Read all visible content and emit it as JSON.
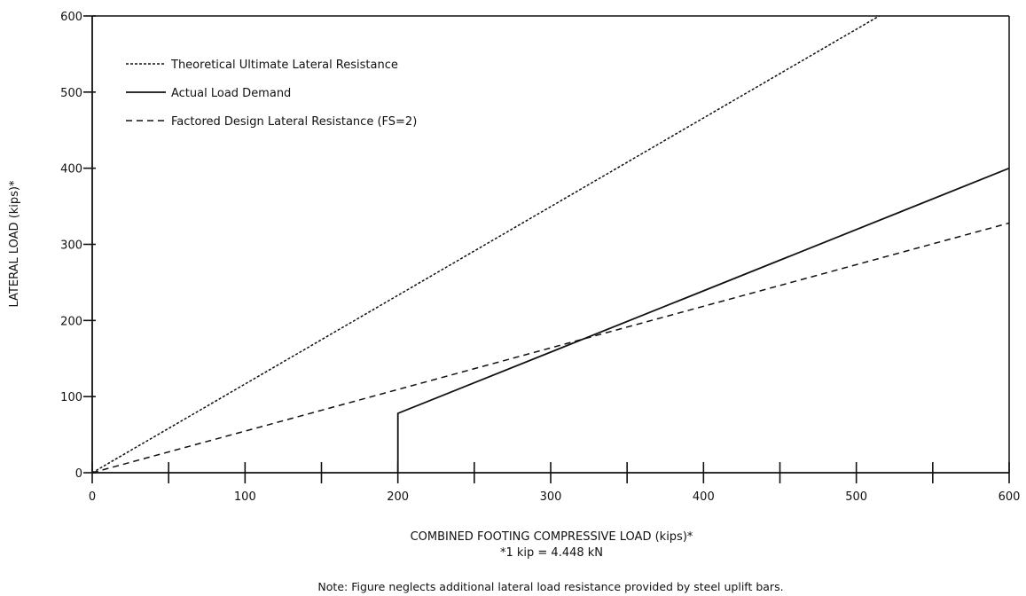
{
  "chart_data": {
    "type": "line",
    "title": "",
    "xlabel": "COMBINED FOOTING COMPRESSIVE LOAD (kips)*",
    "ylabel": "LATERAL LOAD (kips)*",
    "footnote": "*1 kip = 4.448 kN",
    "note": "Note: Figure neglects additional lateral load resistance provided by steel uplift bars.",
    "xlim": [
      0,
      600
    ],
    "ylim": [
      0,
      600
    ],
    "x_tick_labels": [
      "0",
      "100",
      "200",
      "300",
      "400",
      "500",
      "600"
    ],
    "y_tick_labels": [
      "0",
      "100",
      "200",
      "300",
      "400",
      "500",
      "600"
    ],
    "x_minor_ticks": [
      50,
      150,
      250,
      350,
      450,
      550
    ],
    "grid": false,
    "legend_position": "top-left",
    "series": [
      {
        "name": "Theoretical Ultimate Lateral Resistance",
        "style": "dotted",
        "x": [
          0,
          515
        ],
        "y": [
          0,
          600
        ]
      },
      {
        "name": "Actual Load Demand",
        "style": "solid",
        "x": [
          200,
          200,
          600
        ],
        "y": [
          0,
          78,
          400
        ]
      },
      {
        "name": "Factored Design Lateral Resistance (FS=2)",
        "style": "dashed",
        "x": [
          0,
          600
        ],
        "y": [
          0,
          328
        ]
      }
    ]
  }
}
